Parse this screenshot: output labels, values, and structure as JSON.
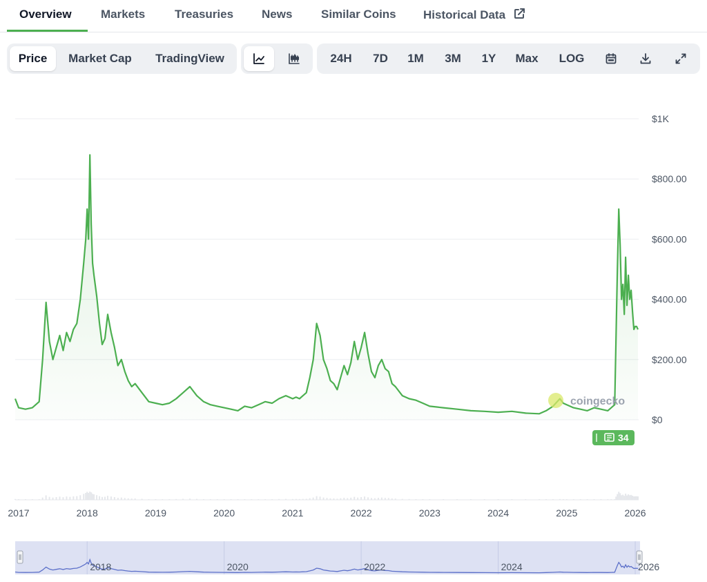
{
  "tabs": [
    {
      "label": "Overview",
      "active": true
    },
    {
      "label": "Markets"
    },
    {
      "label": "Treasuries"
    },
    {
      "label": "News"
    },
    {
      "label": "Similar Coins"
    },
    {
      "label": "Historical Data",
      "icon": "external-link-icon"
    }
  ],
  "toolbar": {
    "view_buttons": [
      "Price",
      "Market Cap",
      "TradingView"
    ],
    "selected_view": "Price",
    "chart_type_icons": [
      "line-chart-icon",
      "candlestick-icon"
    ],
    "selected_chart_type": "line-chart-icon",
    "range_buttons": [
      "24H",
      "7D",
      "1M",
      "3M",
      "1Y",
      "Max",
      "LOG"
    ],
    "tool_icons": [
      "calendar-icon",
      "download-icon",
      "expand-icon"
    ]
  },
  "watermark": "coingecko",
  "news_badge": "34",
  "colors": {
    "line": "#4caf50",
    "navigator_fill": "#dde1f3",
    "navigator_line": "#5b6fc9"
  },
  "chart_data": {
    "type": "line",
    "y_tick_labels": [
      "$1K",
      "$800.00",
      "$600.00",
      "$400.00",
      "$200.00",
      "$0"
    ],
    "y_ticks": [
      1000,
      800,
      600,
      400,
      200,
      0
    ],
    "ylim": [
      0,
      1000
    ],
    "x_tick_labels": [
      "2017",
      "2018",
      "2019",
      "2020",
      "2021",
      "2022",
      "2023",
      "2024",
      "2025",
      "2026"
    ],
    "x_ticks": [
      2017.0,
      2018.0,
      2019.0,
      2020.0,
      2021.0,
      2022.0,
      2023.0,
      2024.0,
      2025.0,
      2026.0
    ],
    "xlim": [
      2016.95,
      2026.05
    ],
    "grid": true,
    "navigator_labels": [
      "2018",
      "2020",
      "2022",
      "2024",
      "2026"
    ],
    "navigator_ticks": [
      2018.0,
      2020.0,
      2022.0,
      2024.0,
      2026.0
    ],
    "series": [
      {
        "x": [
          2016.95,
          2017.0,
          2017.1,
          2017.2,
          2017.3,
          2017.35,
          2017.4,
          2017.45,
          2017.5,
          2017.55,
          2017.6,
          2017.65,
          2017.7,
          2017.75,
          2017.8,
          2017.85,
          2017.9,
          2017.95,
          2017.98,
          2018.0,
          2018.02,
          2018.04,
          2018.06,
          2018.08,
          2018.1,
          2018.14,
          2018.18,
          2018.22,
          2018.26,
          2018.3,
          2018.35,
          2018.4,
          2018.45,
          2018.5,
          2018.55,
          2018.6,
          2018.65,
          2018.7,
          2018.8,
          2018.9,
          2019.0,
          2019.1,
          2019.2,
          2019.3,
          2019.4,
          2019.5,
          2019.6,
          2019.7,
          2019.8,
          2019.9,
          2020.0,
          2020.1,
          2020.2,
          2020.3,
          2020.4,
          2020.5,
          2020.6,
          2020.7,
          2020.8,
          2020.9,
          2021.0,
          2021.05,
          2021.1,
          2021.15,
          2021.2,
          2021.25,
          2021.3,
          2021.35,
          2021.4,
          2021.45,
          2021.5,
          2021.55,
          2021.6,
          2021.65,
          2021.7,
          2021.75,
          2021.8,
          2021.85,
          2021.9,
          2021.95,
          2022.0,
          2022.05,
          2022.1,
          2022.15,
          2022.2,
          2022.25,
          2022.3,
          2022.35,
          2022.4,
          2022.45,
          2022.5,
          2022.6,
          2022.7,
          2022.8,
          2022.9,
          2023.0,
          2023.2,
          2023.4,
          2023.6,
          2023.8,
          2024.0,
          2024.2,
          2024.4,
          2024.6,
          2024.7,
          2024.8,
          2024.9,
          2024.95,
          2025.0,
          2025.1,
          2025.2,
          2025.3,
          2025.4,
          2025.5,
          2025.6,
          2025.65,
          2025.7,
          2025.72,
          2025.74,
          2025.76,
          2025.78,
          2025.8,
          2025.82,
          2025.84,
          2025.86,
          2025.88,
          2025.9,
          2025.92,
          2025.94,
          2025.96,
          2025.98,
          2026.0,
          2026.02,
          2026.04
        ],
        "y": [
          70,
          40,
          35,
          40,
          60,
          200,
          390,
          260,
          200,
          240,
          280,
          230,
          290,
          260,
          300,
          320,
          400,
          520,
          600,
          700,
          600,
          880,
          650,
          520,
          480,
          410,
          320,
          250,
          270,
          350,
          290,
          240,
          180,
          200,
          160,
          130,
          110,
          120,
          90,
          60,
          55,
          50,
          55,
          70,
          90,
          110,
          80,
          60,
          50,
          45,
          40,
          35,
          30,
          45,
          40,
          50,
          60,
          55,
          70,
          80,
          70,
          75,
          70,
          80,
          90,
          140,
          200,
          320,
          280,
          200,
          170,
          130,
          120,
          100,
          140,
          180,
          150,
          190,
          260,
          200,
          240,
          290,
          220,
          160,
          140,
          180,
          200,
          170,
          160,
          120,
          110,
          80,
          70,
          65,
          55,
          45,
          40,
          35,
          30,
          28,
          25,
          28,
          22,
          20,
          30,
          45,
          70,
          55,
          50,
          40,
          35,
          30,
          40,
          35,
          30,
          40,
          50,
          280,
          500,
          700,
          580,
          400,
          450,
          350,
          540,
          380,
          480,
          400,
          430,
          360,
          300,
          310,
          310,
          300
        ]
      }
    ]
  }
}
